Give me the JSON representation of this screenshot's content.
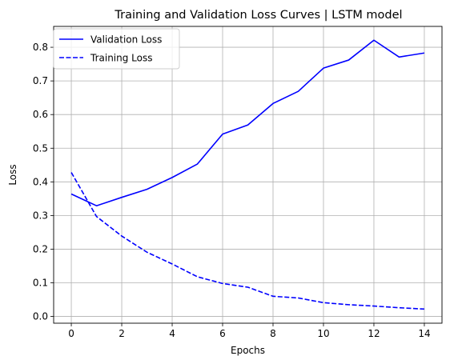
{
  "chart_data": {
    "type": "line",
    "title": "Training and Validation Loss Curves | LSTM model",
    "xlabel": "Epochs",
    "ylabel": "Loss",
    "xlim": [
      -0.7,
      14.7
    ],
    "ylim": [
      -0.02,
      0.862
    ],
    "xticks": [
      0,
      2,
      4,
      6,
      8,
      10,
      12,
      14
    ],
    "xtick_labels": [
      "0",
      "2",
      "4",
      "6",
      "8",
      "10",
      "12",
      "14"
    ],
    "yticks": [
      0.0,
      0.1,
      0.2,
      0.3,
      0.4,
      0.5,
      0.6,
      0.7,
      0.8
    ],
    "ytick_labels": [
      "0.0",
      "0.1",
      "0.2",
      "0.3",
      "0.4",
      "0.5",
      "0.6",
      "0.7",
      "0.8"
    ],
    "grid": true,
    "legend_position": "top-left",
    "x": [
      0,
      1,
      2,
      3,
      4,
      5,
      6,
      7,
      8,
      9,
      10,
      11,
      12,
      13,
      14
    ],
    "series": [
      {
        "name": "Validation Loss",
        "style": "solid",
        "color": "#0000ff",
        "values": [
          0.364,
          0.329,
          0.354,
          0.378,
          0.413,
          0.453,
          0.542,
          0.569,
          0.633,
          0.669,
          0.738,
          0.762,
          0.821,
          0.771,
          0.783
        ]
      },
      {
        "name": "Training Loss",
        "style": "dashed",
        "color": "#0000ff",
        "values": [
          0.428,
          0.297,
          0.239,
          0.191,
          0.156,
          0.118,
          0.098,
          0.087,
          0.06,
          0.055,
          0.041,
          0.035,
          0.031,
          0.026,
          0.022
        ]
      }
    ]
  }
}
